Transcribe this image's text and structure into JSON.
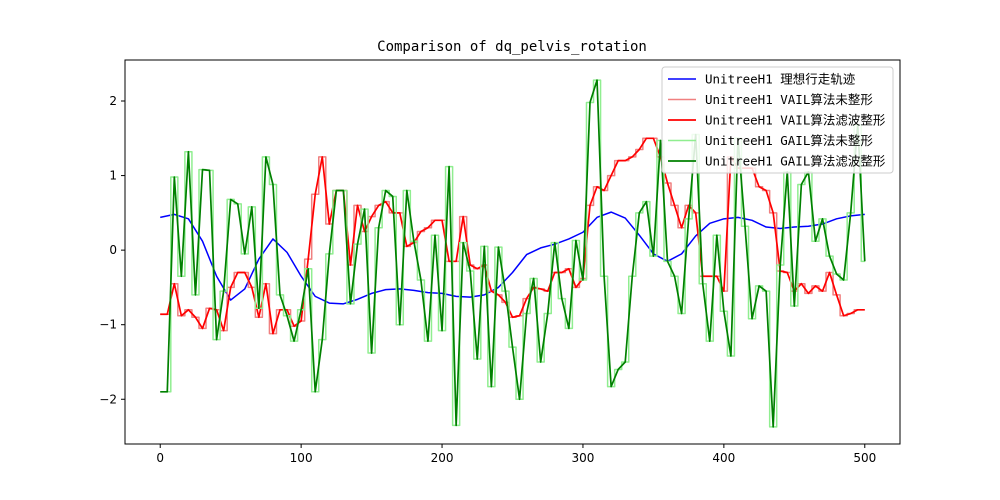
{
  "chart_data": {
    "type": "line",
    "title": "Comparison of dq_pelvis_rotation",
    "xlabel": "",
    "ylabel": "",
    "xlim": [
      -25,
      525
    ],
    "ylim": [
      -2.6,
      2.55
    ],
    "xticks": [
      0,
      100,
      200,
      300,
      400,
      500
    ],
    "yticks": [
      -2,
      -1,
      0,
      1,
      2
    ],
    "xtick_labels": [
      "0",
      "100",
      "200",
      "300",
      "400",
      "500"
    ],
    "ytick_labels": [
      "−2",
      "−1",
      "0",
      "1",
      "2"
    ],
    "grid": false,
    "legend_position": "top-right",
    "series": [
      {
        "name": "UnitreeH1 理想行走轨迹",
        "color": "#0000ff",
        "width": 1.5,
        "step": false,
        "x": [
          0,
          10,
          20,
          30,
          40,
          50,
          60,
          70,
          80,
          90,
          100,
          110,
          120,
          130,
          140,
          150,
          160,
          170,
          180,
          190,
          200,
          210,
          220,
          230,
          240,
          250,
          260,
          270,
          280,
          290,
          300,
          310,
          320,
          330,
          340,
          350,
          360,
          370,
          380,
          390,
          400,
          410,
          420,
          430,
          440,
          450,
          460,
          470,
          480,
          490,
          500
        ],
        "y": [
          0.44,
          0.48,
          0.42,
          0.12,
          -0.35,
          -0.67,
          -0.52,
          -0.12,
          0.15,
          -0.03,
          -0.35,
          -0.62,
          -0.71,
          -0.72,
          -0.66,
          -0.58,
          -0.53,
          -0.52,
          -0.54,
          -0.57,
          -0.58,
          -0.62,
          -0.63,
          -0.6,
          -0.5,
          -0.3,
          -0.06,
          0.03,
          0.08,
          0.15,
          0.24,
          0.44,
          0.51,
          0.43,
          0.2,
          -0.05,
          -0.15,
          -0.05,
          0.19,
          0.36,
          0.42,
          0.44,
          0.4,
          0.31,
          0.29,
          0.31,
          0.32,
          0.35,
          0.42,
          0.46,
          0.48
        ]
      },
      {
        "name": "UnitreeH1 VAIL算法未整形",
        "color": "#f08080",
        "width": 1.5,
        "step": true,
        "x": [
          0,
          5,
          10,
          15,
          20,
          25,
          30,
          35,
          40,
          45,
          50,
          55,
          60,
          65,
          70,
          75,
          80,
          85,
          90,
          95,
          100,
          105,
          110,
          115,
          120,
          125,
          130,
          135,
          140,
          145,
          150,
          155,
          160,
          165,
          170,
          175,
          180,
          185,
          190,
          195,
          200,
          205,
          210,
          215,
          220,
          225,
          230,
          235,
          240,
          245,
          250,
          255,
          260,
          265,
          270,
          275,
          280,
          285,
          290,
          295,
          300,
          305,
          310,
          315,
          320,
          325,
          330,
          335,
          340,
          345,
          350,
          355,
          360,
          365,
          370,
          375,
          380,
          385,
          390,
          395,
          400,
          405,
          410,
          415,
          420,
          425,
          430,
          435,
          440,
          445,
          450,
          455,
          460,
          465,
          470,
          475,
          480,
          485,
          490,
          495,
          500
        ],
        "y": [
          -0.86,
          -0.86,
          -0.45,
          -0.88,
          -0.8,
          -0.9,
          -1.05,
          -0.78,
          -0.8,
          -1.08,
          -0.5,
          -0.3,
          -0.3,
          -0.5,
          -0.9,
          -0.45,
          -1.12,
          -0.8,
          -0.8,
          -1.02,
          -0.95,
          -0.12,
          0.75,
          1.25,
          0.35,
          0.8,
          0.8,
          -0.2,
          0.6,
          0.25,
          0.45,
          0.6,
          0.65,
          0.5,
          0.5,
          0.05,
          0.1,
          0.25,
          0.3,
          0.4,
          0.4,
          -0.15,
          -0.15,
          0.45,
          -0.2,
          -0.25,
          -0.2,
          -0.55,
          -0.6,
          -0.7,
          -0.9,
          -0.88,
          -0.65,
          -0.5,
          -0.52,
          -0.55,
          -0.3,
          -0.3,
          -0.25,
          -0.5,
          -0.38,
          0.6,
          0.85,
          0.8,
          1.0,
          1.2,
          1.2,
          1.25,
          1.35,
          1.5,
          1.5,
          1.25,
          0.9,
          0.6,
          0.3,
          0.6,
          0.5,
          -0.35,
          -0.35,
          -0.35,
          -0.55,
          1.25,
          1.1,
          1.1,
          1.1,
          0.85,
          0.8,
          0.5,
          -0.28,
          -0.3,
          -0.55,
          -0.45,
          -0.58,
          -0.48,
          -0.55,
          -0.3,
          -0.6,
          -0.88,
          -0.85,
          -0.8,
          -0.8
        ]
      },
      {
        "name": "UnitreeH1 VAIL算法滤波整形",
        "color": "#ff0000",
        "width": 1.7,
        "step": false,
        "x": [
          0,
          5,
          10,
          15,
          20,
          25,
          30,
          35,
          40,
          45,
          50,
          55,
          60,
          65,
          70,
          75,
          80,
          85,
          90,
          95,
          100,
          105,
          110,
          115,
          120,
          125,
          130,
          135,
          140,
          145,
          150,
          155,
          160,
          165,
          170,
          175,
          180,
          185,
          190,
          195,
          200,
          205,
          210,
          215,
          220,
          225,
          230,
          235,
          240,
          245,
          250,
          255,
          260,
          265,
          270,
          275,
          280,
          285,
          290,
          295,
          300,
          305,
          310,
          315,
          320,
          325,
          330,
          335,
          340,
          345,
          350,
          355,
          360,
          365,
          370,
          375,
          380,
          385,
          390,
          395,
          400,
          405,
          410,
          415,
          420,
          425,
          430,
          435,
          440,
          445,
          450,
          455,
          460,
          465,
          470,
          475,
          480,
          485,
          490,
          495,
          500
        ],
        "y": [
          -0.86,
          -0.86,
          -0.45,
          -0.88,
          -0.8,
          -0.9,
          -1.05,
          -0.78,
          -0.8,
          -1.08,
          -0.5,
          -0.3,
          -0.3,
          -0.5,
          -0.9,
          -0.45,
          -1.12,
          -0.8,
          -0.8,
          -1.02,
          -0.95,
          -0.12,
          0.75,
          1.25,
          0.35,
          0.8,
          0.8,
          -0.2,
          0.6,
          0.25,
          0.45,
          0.6,
          0.65,
          0.5,
          0.5,
          0.05,
          0.1,
          0.25,
          0.3,
          0.4,
          0.4,
          -0.15,
          -0.15,
          0.45,
          -0.2,
          -0.25,
          -0.2,
          -0.55,
          -0.6,
          -0.7,
          -0.9,
          -0.88,
          -0.65,
          -0.5,
          -0.52,
          -0.55,
          -0.3,
          -0.3,
          -0.25,
          -0.5,
          -0.38,
          0.6,
          0.85,
          0.8,
          1.0,
          1.2,
          1.2,
          1.25,
          1.35,
          1.5,
          1.5,
          1.25,
          0.9,
          0.6,
          0.3,
          0.6,
          0.5,
          -0.35,
          -0.35,
          -0.35,
          -0.55,
          1.25,
          1.1,
          1.1,
          1.1,
          0.85,
          0.8,
          0.5,
          -0.28,
          -0.3,
          -0.55,
          -0.45,
          -0.58,
          -0.48,
          -0.55,
          -0.3,
          -0.6,
          -0.88,
          -0.85,
          -0.8,
          -0.8
        ]
      },
      {
        "name": "UnitreeH1 GAIL算法未整形",
        "color": "#90ee90",
        "width": 1.5,
        "step": true,
        "x": [
          0,
          5,
          10,
          15,
          20,
          25,
          30,
          35,
          40,
          45,
          50,
          55,
          60,
          65,
          70,
          75,
          80,
          85,
          90,
          95,
          100,
          105,
          110,
          115,
          120,
          125,
          130,
          135,
          140,
          145,
          150,
          155,
          160,
          165,
          170,
          175,
          180,
          185,
          190,
          195,
          200,
          205,
          210,
          215,
          220,
          225,
          230,
          235,
          240,
          245,
          250,
          255,
          260,
          265,
          270,
          275,
          280,
          285,
          290,
          295,
          300,
          305,
          310,
          315,
          320,
          325,
          330,
          335,
          340,
          345,
          350,
          355,
          360,
          365,
          370,
          375,
          380,
          385,
          390,
          395,
          400,
          405,
          410,
          415,
          420,
          425,
          430,
          435,
          440,
          445,
          450,
          455,
          460,
          465,
          470,
          475,
          480,
          485,
          490,
          495,
          500
        ],
        "y": [
          -1.9,
          -1.9,
          0.98,
          -0.35,
          1.32,
          -0.6,
          1.08,
          1.07,
          -1.2,
          -0.55,
          0.68,
          0.62,
          -0.05,
          0.58,
          -0.78,
          1.25,
          0.88,
          -0.6,
          -0.88,
          -1.22,
          -0.8,
          -0.25,
          -1.9,
          -1.2,
          -0.05,
          0.8,
          0.8,
          -0.72,
          0.08,
          0.55,
          -1.38,
          0.3,
          0.8,
          0.72,
          -1.0,
          0.8,
          0.12,
          -0.4,
          -1.22,
          0.2,
          -1.08,
          1.12,
          -2.35,
          0.1,
          -0.28,
          -1.46,
          0.05,
          -1.83,
          0.04,
          -0.55,
          -1.3,
          -2.0,
          -0.85,
          -0.38,
          -1.5,
          -0.85,
          0.1,
          -0.65,
          -1.05,
          0.13,
          -0.4,
          1.98,
          2.28,
          -0.35,
          -1.83,
          -1.6,
          -1.5,
          -0.35,
          0.5,
          0.65,
          -0.08,
          1.47,
          -0.15,
          -0.35,
          -0.85,
          0.42,
          1.55,
          -0.45,
          -1.22,
          0.2,
          -0.82,
          -1.42,
          1.5,
          0.32,
          -0.92,
          -0.48,
          -0.55,
          -2.37,
          -0.2,
          1.05,
          -0.75,
          0.88,
          1.05,
          0.12,
          0.42,
          -0.08,
          -0.32,
          -0.4,
          0.5,
          1.68,
          -0.15
        ]
      },
      {
        "name": "UnitreeH1 GAIL算法滤波整形",
        "color": "#008000",
        "width": 1.7,
        "step": false,
        "x": [
          0,
          5,
          10,
          15,
          20,
          25,
          30,
          35,
          40,
          45,
          50,
          55,
          60,
          65,
          70,
          75,
          80,
          85,
          90,
          95,
          100,
          105,
          110,
          115,
          120,
          125,
          130,
          135,
          140,
          145,
          150,
          155,
          160,
          165,
          170,
          175,
          180,
          185,
          190,
          195,
          200,
          205,
          210,
          215,
          220,
          225,
          230,
          235,
          240,
          245,
          250,
          255,
          260,
          265,
          270,
          275,
          280,
          285,
          290,
          295,
          300,
          305,
          310,
          315,
          320,
          325,
          330,
          335,
          340,
          345,
          350,
          355,
          360,
          365,
          370,
          375,
          380,
          385,
          390,
          395,
          400,
          405,
          410,
          415,
          420,
          425,
          430,
          435,
          440,
          445,
          450,
          455,
          460,
          465,
          470,
          475,
          480,
          485,
          490,
          495,
          500
        ],
        "y": [
          -1.9,
          -1.9,
          0.98,
          -0.35,
          1.32,
          -0.6,
          1.08,
          1.07,
          -1.2,
          -0.55,
          0.68,
          0.62,
          -0.05,
          0.58,
          -0.78,
          1.25,
          0.88,
          -0.6,
          -0.88,
          -1.22,
          -0.8,
          -0.25,
          -1.9,
          -1.2,
          -0.05,
          0.8,
          0.8,
          -0.72,
          0.08,
          0.55,
          -1.38,
          0.3,
          0.8,
          0.72,
          -1.0,
          0.8,
          0.12,
          -0.4,
          -1.22,
          0.2,
          -1.08,
          1.12,
          -2.35,
          0.1,
          -0.28,
          -1.46,
          0.05,
          -1.83,
          0.04,
          -0.55,
          -1.3,
          -2.0,
          -0.85,
          -0.38,
          -1.5,
          -0.85,
          0.1,
          -0.65,
          -1.05,
          0.13,
          -0.4,
          1.98,
          2.28,
          -0.35,
          -1.83,
          -1.6,
          -1.5,
          -0.35,
          0.5,
          0.65,
          -0.08,
          1.47,
          -0.15,
          -0.35,
          -0.85,
          0.42,
          1.55,
          -0.45,
          -1.22,
          0.2,
          -0.82,
          -1.42,
          1.5,
          0.32,
          -0.92,
          -0.48,
          -0.55,
          -2.37,
          -0.2,
          1.05,
          -0.75,
          0.88,
          1.05,
          0.12,
          0.42,
          -0.08,
          -0.32,
          -0.4,
          0.5,
          1.68,
          -0.15
        ]
      }
    ]
  }
}
